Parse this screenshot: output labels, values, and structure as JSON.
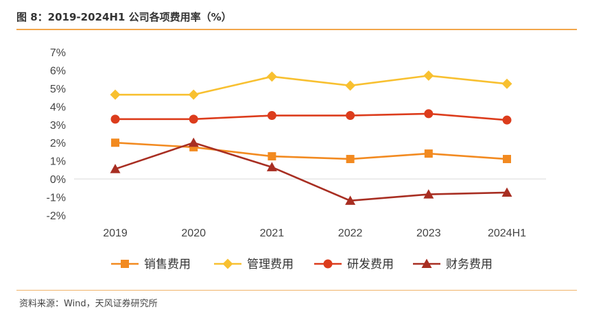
{
  "header": {
    "figure_title": "图 8：2019-2024H1 公司各项费用率（%）"
  },
  "footer": {
    "source": "资料来源：Wind，天风证券研究所"
  },
  "chart_data": {
    "type": "line",
    "title": "2019-2024H1 公司各项费用率（%）",
    "xlabel": "",
    "ylabel": "",
    "categories": [
      "2019",
      "2020",
      "2021",
      "2022",
      "2023",
      "2024H1"
    ],
    "ylim": [
      -2,
      7
    ],
    "yticks": [
      -2,
      -1,
      0,
      1,
      2,
      3,
      4,
      5,
      6,
      7
    ],
    "ytick_labels": [
      "-2%",
      "-1%",
      "0%",
      "1%",
      "2%",
      "3%",
      "4%",
      "5%",
      "6%",
      "7%"
    ],
    "legend_position": "bottom",
    "series": [
      {
        "name": "销售费用",
        "marker": "square",
        "color": "#f28a20",
        "values": [
          2.0,
          1.75,
          1.25,
          1.1,
          1.4,
          1.1
        ]
      },
      {
        "name": "管理费用",
        "marker": "diamond",
        "color": "#f8c030",
        "values": [
          4.65,
          4.65,
          5.65,
          5.15,
          5.7,
          5.25
        ]
      },
      {
        "name": "研发费用",
        "marker": "circle",
        "color": "#dc3c1c",
        "values": [
          3.3,
          3.3,
          3.5,
          3.5,
          3.6,
          3.25
        ]
      },
      {
        "name": "财务费用",
        "marker": "triangle",
        "color": "#a82e22",
        "values": [
          0.55,
          2.0,
          0.65,
          -1.2,
          -0.85,
          -0.75
        ]
      }
    ]
  }
}
